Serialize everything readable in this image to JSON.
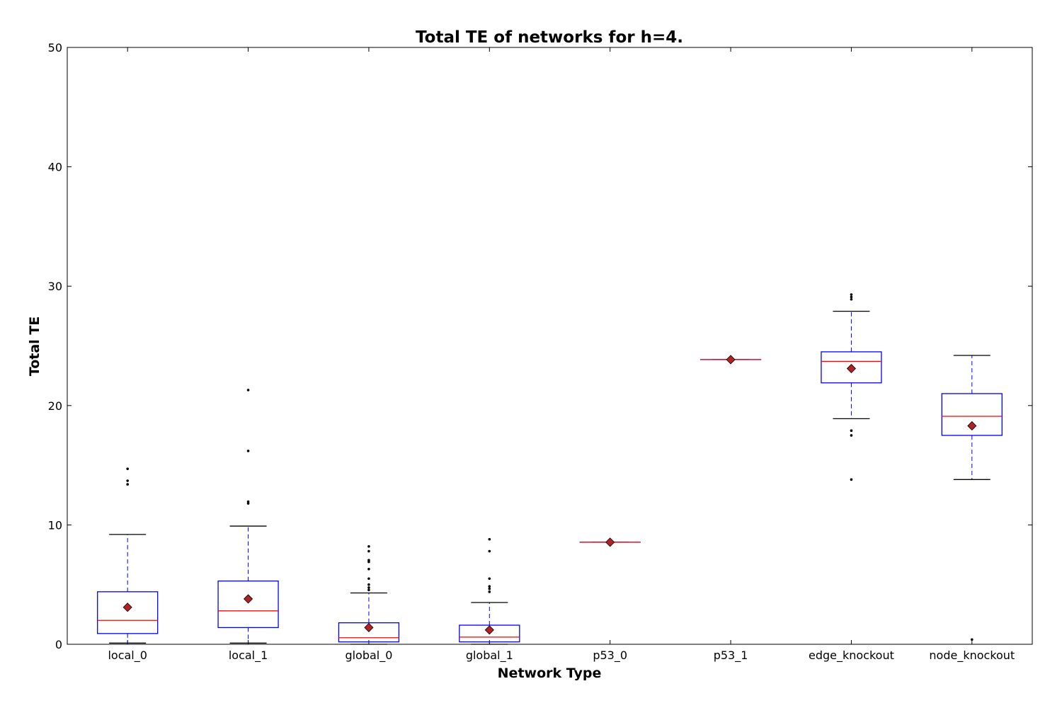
{
  "chart_data": {
    "type": "box",
    "title": "Total TE of networks for h=4.",
    "xlabel": "Network Type",
    "ylabel": "Total TE",
    "ylim": [
      0,
      50
    ],
    "yticks": [
      0,
      10,
      20,
      30,
      40,
      50
    ],
    "grid": false,
    "legend": "none",
    "colors": {
      "box": "#0000ff",
      "median": "#ff0000",
      "whisker": "#0000ff",
      "cap": "#000000",
      "mean_marker": "#b22222",
      "flier": "#000000"
    },
    "categories": [
      "local_0",
      "local_1",
      "global_0",
      "global_1",
      "p53_0",
      "p53_1",
      "edge_knockout",
      "node_knockout"
    ],
    "boxes": [
      {
        "category": "local_0",
        "whisker_low": 0.1,
        "q1": 0.9,
        "median": 2.0,
        "q3": 4.4,
        "whisker_high": 9.2,
        "mean": 3.1,
        "fliers": [
          13.4,
          13.7,
          14.7
        ]
      },
      {
        "category": "local_1",
        "whisker_low": 0.1,
        "q1": 1.4,
        "median": 2.8,
        "q3": 5.3,
        "whisker_high": 9.9,
        "mean": 3.8,
        "fliers": [
          11.8,
          11.95,
          16.2,
          21.3
        ]
      },
      {
        "category": "global_0",
        "whisker_low": 0.0,
        "q1": 0.2,
        "median": 0.55,
        "q3": 1.8,
        "whisker_high": 4.3,
        "mean": 1.4,
        "fliers": [
          4.55,
          4.75,
          5.0,
          5.5,
          6.3,
          6.9,
          7.05,
          7.8,
          8.2
        ]
      },
      {
        "category": "global_1",
        "whisker_low": 0.0,
        "q1": 0.2,
        "median": 0.6,
        "q3": 1.6,
        "whisker_high": 3.5,
        "mean": 1.2,
        "fliers": [
          4.4,
          4.65,
          4.85,
          5.5,
          7.8,
          8.8
        ]
      },
      {
        "category": "p53_0",
        "whisker_low": 8.55,
        "q1": 8.55,
        "median": 8.55,
        "q3": 8.55,
        "whisker_high": 8.55,
        "mean": 8.55,
        "fliers": []
      },
      {
        "category": "p53_1",
        "whisker_low": 23.85,
        "q1": 23.85,
        "median": 23.85,
        "q3": 23.85,
        "whisker_high": 23.85,
        "mean": 23.85,
        "fliers": []
      },
      {
        "category": "edge_knockout",
        "whisker_low": 18.9,
        "q1": 21.9,
        "median": 23.7,
        "q3": 24.5,
        "whisker_high": 27.9,
        "mean": 23.1,
        "fliers": [
          13.8,
          17.5,
          17.9,
          28.9,
          29.1,
          29.3
        ]
      },
      {
        "category": "node_knockout",
        "whisker_low": 13.8,
        "q1": 17.5,
        "median": 19.1,
        "q3": 21.0,
        "whisker_high": 24.2,
        "mean": 18.3,
        "fliers": [
          0.4
        ]
      }
    ]
  }
}
